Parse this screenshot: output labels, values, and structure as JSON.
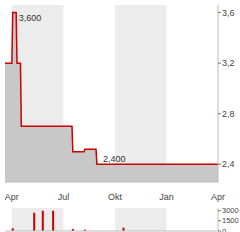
{
  "chart_data": [
    {
      "type": "area",
      "x": [
        -0.4,
        0.0,
        0.05,
        0.25,
        0.3,
        0.5,
        0.55,
        3.5,
        3.55,
        4.2,
        4.25,
        4.9,
        4.95,
        12.0
      ],
      "values": [
        3.2,
        3.2,
        3.6,
        3.6,
        3.2,
        3.2,
        2.7,
        2.7,
        2.5,
        2.5,
        2.52,
        2.52,
        2.4,
        2.4
      ],
      "color": "#cc0000",
      "xlim": [
        -0.4,
        12.0
      ],
      "xticks": [
        {
          "value": 0,
          "label": "Apr"
        },
        {
          "value": 3,
          "label": "Jul"
        },
        {
          "value": 6,
          "label": "Okt"
        },
        {
          "value": 9,
          "label": "Jan"
        },
        {
          "value": 12,
          "label": "Apr"
        }
      ],
      "ylim": [
        2.26,
        3.66
      ],
      "yticks": [
        {
          "value": 2.4,
          "label": "2,4"
        },
        {
          "value": 2.8,
          "label": "2,8"
        },
        {
          "value": 3.2,
          "label": "3,2"
        },
        {
          "value": 3.6,
          "label": "3,6"
        }
      ],
      "annotations": [
        {
          "text": "3,600",
          "x": 0.05,
          "y": 3.6
        },
        {
          "text": "2,400",
          "x": 4.95,
          "y": 2.4
        }
      ]
    },
    {
      "type": "bar",
      "x": [
        0.05,
        1.3,
        1.8,
        2.4,
        3.55,
        4.25,
        6.5
      ],
      "values": [
        400,
        2700,
        3000,
        3000,
        300,
        200,
        500
      ],
      "color": "#cc0000",
      "xlim": [
        -0.4,
        12.0
      ],
      "xticks": [
        0,
        3,
        6,
        9,
        12
      ],
      "ylim": [
        0,
        3400
      ],
      "yticks": [
        0,
        1500,
        3000
      ],
      "tick_labels": "y"
    }
  ]
}
